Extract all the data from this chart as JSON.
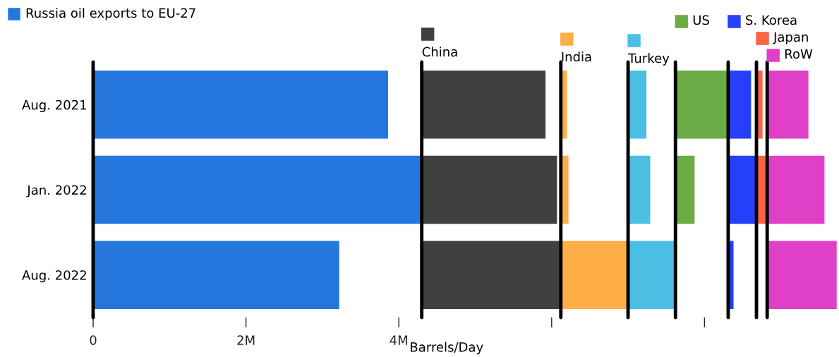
{
  "chart_data": {
    "type": "bar",
    "orientation": "horizontal",
    "xlabel": "Barrels/Day",
    "categories": [
      "Aug. 2021",
      "Jan. 2022",
      "Aug. 2022"
    ],
    "series": [
      {
        "name": "Russia oil exports to EU-27",
        "color": "#2577de",
        "values": [
          3.86,
          4.3,
          3.22
        ],
        "base": [
          0,
          0,
          0
        ]
      },
      {
        "name": "China",
        "color": "#404040",
        "values": [
          1.62,
          1.77,
          1.82
        ],
        "base": [
          4.3,
          4.3,
          4.3
        ]
      },
      {
        "name": "India",
        "color": "#ffad47",
        "values": [
          0.08,
          0.1,
          0.88
        ],
        "base": [
          6.12,
          6.12,
          6.12
        ]
      },
      {
        "name": "Turkey",
        "color": "#4bbfe3",
        "values": [
          0.24,
          0.29,
          0.62
        ],
        "base": [
          7.0,
          7.0,
          7.0
        ]
      },
      {
        "name": "US",
        "color": "#6aab45",
        "values": [
          0.69,
          0.25,
          null
        ],
        "base": [
          7.62,
          7.62,
          null
        ]
      },
      {
        "name": "S. Korea",
        "color": "#253ffa",
        "values": [
          0.3,
          0.37,
          0.07
        ],
        "base": [
          8.31,
          8.31,
          8.31
        ]
      },
      {
        "name": "Japan",
        "color": "#fa6346",
        "values": [
          0.08,
          0.14,
          null
        ],
        "base": [
          8.68,
          8.68,
          null
        ]
      },
      {
        "name": "RoW",
        "color": "#e040c8",
        "values": [
          0.54,
          0.75,
          0.91
        ],
        "base": [
          8.82,
          8.82,
          8.82
        ]
      }
    ],
    "ref_lines": [
      {
        "axis": "x",
        "value": 0,
        "color": "#000000"
      },
      {
        "axis": "x",
        "value": 4.3,
        "color": "#000000"
      },
      {
        "axis": "x",
        "value": 6.12,
        "color": "#000000"
      },
      {
        "axis": "x",
        "value": 7.0,
        "color": "#000000"
      },
      {
        "axis": "x",
        "value": 7.62,
        "color": "#000000"
      },
      {
        "axis": "x",
        "value": 8.31,
        "color": "#000000"
      },
      {
        "axis": "x",
        "value": 8.68,
        "color": "#000000"
      },
      {
        "axis": "x",
        "value": 8.82,
        "color": "#000000"
      }
    ],
    "xlim": [
      0,
      9.76
    ],
    "xticks": [
      {
        "value": 0,
        "label": "0"
      },
      {
        "value": 2,
        "label": "2M"
      },
      {
        "value": 4,
        "label": "4M"
      },
      {
        "value": 6,
        "label": null
      },
      {
        "value": 8,
        "label": null
      }
    ],
    "grid": false,
    "legend": "top"
  }
}
